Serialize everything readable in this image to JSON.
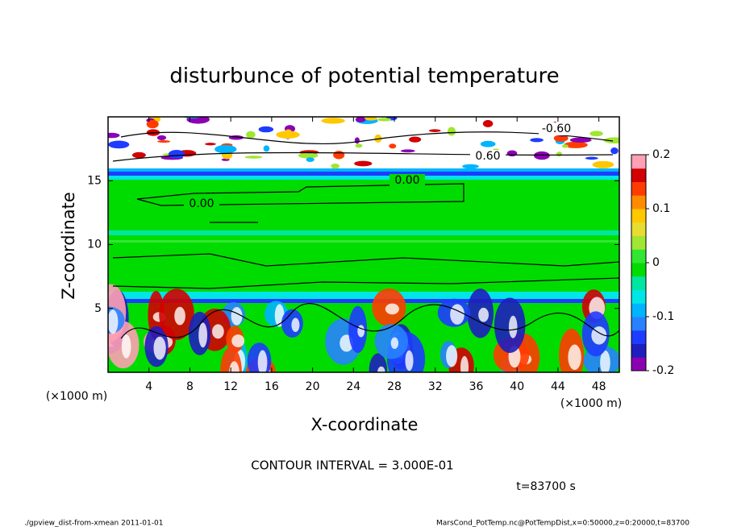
{
  "chart_data": {
    "type": "heatmap",
    "title": "disturbunce of potential temperature",
    "x_label": "X-coordinate",
    "y_label": "Z-coordinate",
    "x_unit": "(×1000 m)",
    "y_unit": "(×1000 m)",
    "xlim": [
      0,
      50
    ],
    "xticks": [
      4,
      8,
      12,
      16,
      20,
      24,
      28,
      32,
      36,
      40,
      44,
      48
    ],
    "ylim": [
      0,
      20
    ],
    "yticks": [
      5,
      10,
      15
    ],
    "zlim": [
      -0.2,
      0.2
    ],
    "zticks": [
      -0.2,
      -0.1,
      0,
      0.1,
      0.2
    ],
    "colormap": [
      "#8c00b4",
      "#1e1ebe",
      "#1e3cff",
      "#2882ff",
      "#00b4ff",
      "#00e6e6",
      "#00e6a0",
      "#00dc00",
      "#32e632",
      "#a0e632",
      "#e6dc32",
      "#ffc800",
      "#ff8c00",
      "#ff3c00",
      "#d20000",
      "#ffa0b4"
    ],
    "contour_labels": [
      "0.00",
      "0.00",
      "-0.60",
      "0.60"
    ],
    "annotation": "CONTOUR INTERVAL = 3.000E-01",
    "time_label": "t=83700 s",
    "footer_left": "./gpview_dist-from-xmean  2011-01-01",
    "footer_right": "MarsCond_PotTemp.nc@PotTempDist,x=0:50000,z=0:20000,t=83700"
  }
}
